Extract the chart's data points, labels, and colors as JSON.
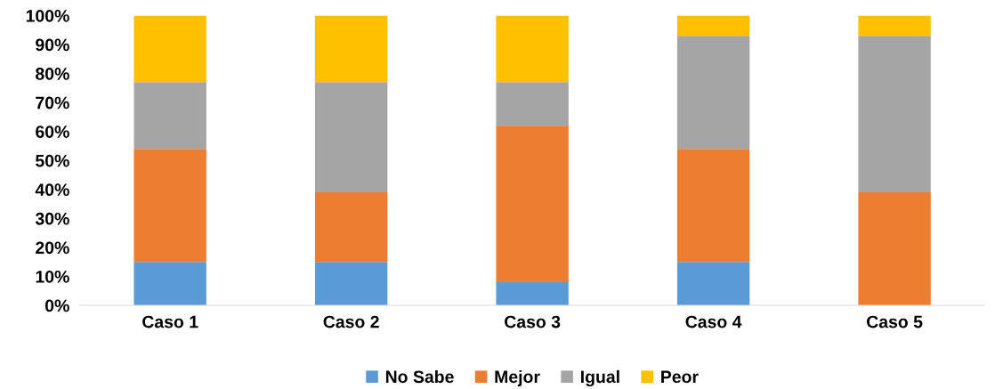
{
  "chart_data": {
    "type": "bar",
    "stacked": true,
    "categories": [
      "Caso 1",
      "Caso 2",
      "Caso 3",
      "Caso 4",
      "Caso 5"
    ],
    "series": [
      {
        "name": "No Sabe",
        "color": "#5b9bd5",
        "values": [
          15,
          15,
          8,
          15,
          0
        ]
      },
      {
        "name": "Mejor",
        "color": "#ed7d31",
        "values": [
          39,
          24,
          54,
          39,
          39
        ]
      },
      {
        "name": "Igual",
        "color": "#a5a5a5",
        "values": [
          23,
          38,
          15,
          39,
          54
        ]
      },
      {
        "name": "Peor",
        "color": "#ffc000",
        "values": [
          23,
          23,
          23,
          7,
          7
        ]
      }
    ],
    "ylim": [
      0,
      100
    ],
    "yticks": [
      {
        "value": 0,
        "label": "0%"
      },
      {
        "value": 10,
        "label": "10%"
      },
      {
        "value": 20,
        "label": "20%"
      },
      {
        "value": 30,
        "label": "30%"
      },
      {
        "value": 40,
        "label": "40%"
      },
      {
        "value": 50,
        "label": "50%"
      },
      {
        "value": 60,
        "label": "60%"
      },
      {
        "value": 70,
        "label": "70%"
      },
      {
        "value": 80,
        "label": "80%"
      },
      {
        "value": 90,
        "label": "90%"
      },
      {
        "value": 100,
        "label": "100%"
      }
    ],
    "grid": false,
    "legend": "bottom"
  }
}
